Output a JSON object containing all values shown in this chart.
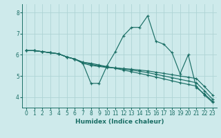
{
  "xlabel": "Humidex (Indice chaleur)",
  "background_color": "#ceeaeb",
  "grid_color": "#aed4d5",
  "line_color": "#1a6e65",
  "xlim": [
    -0.5,
    23.5
  ],
  "ylim": [
    3.5,
    8.4
  ],
  "yticks": [
    4,
    5,
    6,
    7,
    8
  ],
  "xticks": [
    0,
    1,
    2,
    3,
    4,
    5,
    6,
    7,
    8,
    9,
    10,
    11,
    12,
    13,
    14,
    15,
    16,
    17,
    18,
    19,
    20,
    21,
    22,
    23
  ],
  "lines": [
    {
      "x": [
        0,
        1,
        2,
        3,
        4,
        5,
        6,
        7,
        8,
        9,
        10,
        11,
        12,
        13,
        14,
        15,
        16,
        17,
        18,
        19,
        20,
        21,
        22,
        23
      ],
      "y": [
        6.2,
        6.2,
        6.15,
        6.1,
        6.05,
        5.9,
        5.8,
        5.6,
        4.65,
        4.65,
        5.5,
        6.15,
        6.9,
        7.3,
        7.3,
        7.85,
        6.65,
        6.5,
        6.1,
        5.1,
        6.0,
        4.45,
        4.15,
        3.8
      ]
    },
    {
      "x": [
        0,
        1,
        2,
        3,
        4,
        5,
        6,
        7,
        8,
        9,
        10,
        11,
        12,
        13,
        14,
        15,
        16,
        17,
        18,
        19,
        20,
        21,
        22,
        23
      ],
      "y": [
        6.2,
        6.2,
        6.15,
        6.1,
        6.05,
        5.9,
        5.8,
        5.6,
        5.5,
        5.45,
        5.4,
        5.38,
        5.35,
        5.32,
        5.28,
        5.24,
        5.18,
        5.12,
        5.06,
        5.0,
        4.94,
        4.88,
        4.5,
        4.1
      ]
    },
    {
      "x": [
        0,
        1,
        2,
        3,
        4,
        5,
        6,
        7,
        8,
        9,
        10,
        11,
        12,
        13,
        14,
        15,
        16,
        17,
        18,
        19,
        20,
        21,
        22,
        23
      ],
      "y": [
        6.2,
        6.2,
        6.15,
        6.1,
        6.05,
        5.9,
        5.8,
        5.65,
        5.55,
        5.48,
        5.42,
        5.38,
        5.33,
        5.28,
        5.22,
        5.16,
        5.08,
        5.0,
        4.92,
        4.84,
        4.76,
        4.68,
        4.3,
        3.9
      ]
    },
    {
      "x": [
        0,
        1,
        2,
        3,
        4,
        5,
        6,
        7,
        8,
        9,
        10,
        11,
        12,
        13,
        14,
        15,
        16,
        17,
        18,
        19,
        20,
        21,
        22,
        23
      ],
      "y": [
        6.2,
        6.2,
        6.15,
        6.1,
        6.05,
        5.9,
        5.8,
        5.65,
        5.6,
        5.52,
        5.44,
        5.36,
        5.28,
        5.2,
        5.12,
        5.04,
        4.95,
        4.86,
        4.77,
        4.68,
        4.6,
        4.52,
        4.1,
        3.75
      ]
    }
  ]
}
